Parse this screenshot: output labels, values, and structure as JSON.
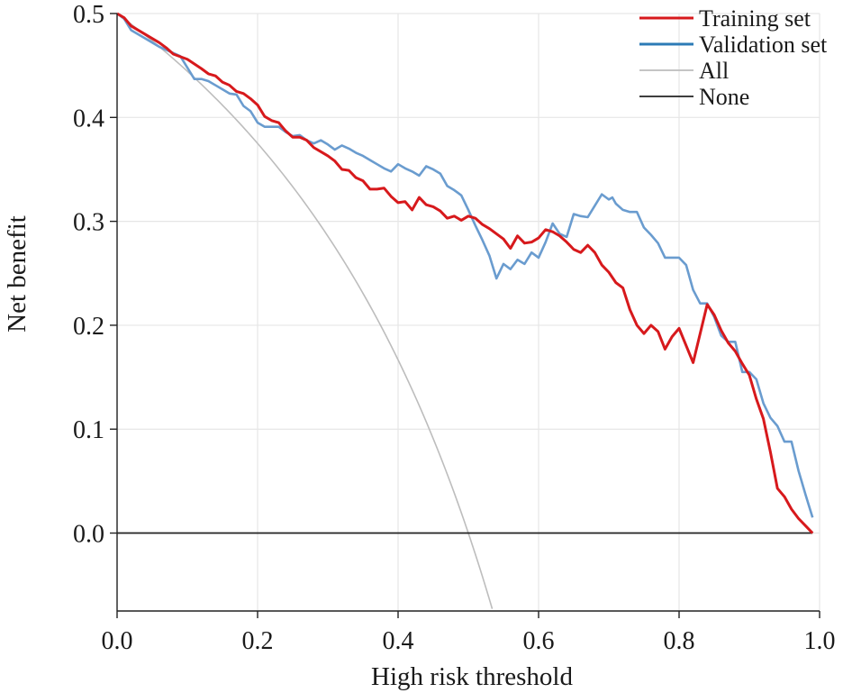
{
  "chart_data": {
    "type": "line",
    "xlabel": "High risk threshold",
    "ylabel": "Net benefit",
    "xlim": [
      0,
      1
    ],
    "ylim": [
      -0.075,
      0.5
    ],
    "xticks": [
      "0.0",
      "0.2",
      "0.4",
      "0.6",
      "0.8",
      "1.0"
    ],
    "yticks": [
      "0.0",
      "0.1",
      "0.2",
      "0.3",
      "0.4",
      "0.5"
    ],
    "grid": true,
    "legend_position": "top-right",
    "series": [
      {
        "name": "Training set",
        "color": "#d7191c",
        "x": [
          0.0,
          0.01,
          0.02,
          0.04,
          0.06,
          0.07,
          0.08,
          0.1,
          0.12,
          0.13,
          0.14,
          0.15,
          0.16,
          0.17,
          0.18,
          0.19,
          0.2,
          0.21,
          0.22,
          0.23,
          0.24,
          0.25,
          0.26,
          0.27,
          0.28,
          0.29,
          0.3,
          0.31,
          0.32,
          0.33,
          0.34,
          0.35,
          0.36,
          0.37,
          0.38,
          0.39,
          0.4,
          0.41,
          0.42,
          0.43,
          0.44,
          0.45,
          0.46,
          0.47,
          0.48,
          0.49,
          0.5,
          0.51,
          0.52,
          0.53,
          0.54,
          0.55,
          0.56,
          0.57,
          0.58,
          0.59,
          0.6,
          0.61,
          0.62,
          0.63,
          0.64,
          0.65,
          0.66,
          0.67,
          0.68,
          0.69,
          0.7,
          0.71,
          0.72,
          0.73,
          0.74,
          0.75,
          0.76,
          0.77,
          0.78,
          0.79,
          0.8,
          0.82,
          0.84,
          0.85,
          0.86,
          0.87,
          0.88,
          0.89,
          0.9,
          0.91,
          0.92,
          0.93,
          0.94,
          0.95,
          0.96,
          0.97,
          0.98,
          0.99
        ],
        "values": [
          0.5,
          0.496,
          0.488,
          0.48,
          0.472,
          0.467,
          0.461,
          0.456,
          0.447,
          0.442,
          0.44,
          0.434,
          0.431,
          0.425,
          0.423,
          0.418,
          0.412,
          0.401,
          0.397,
          0.395,
          0.387,
          0.381,
          0.381,
          0.378,
          0.371,
          0.367,
          0.363,
          0.358,
          0.35,
          0.349,
          0.342,
          0.339,
          0.331,
          0.331,
          0.332,
          0.324,
          0.318,
          0.319,
          0.311,
          0.323,
          0.316,
          0.314,
          0.31,
          0.303,
          0.305,
          0.301,
          0.305,
          0.303,
          0.297,
          0.293,
          0.288,
          0.283,
          0.274,
          0.286,
          0.279,
          0.28,
          0.284,
          0.292,
          0.29,
          0.286,
          0.28,
          0.273,
          0.27,
          0.277,
          0.27,
          0.258,
          0.251,
          0.241,
          0.236,
          0.215,
          0.2,
          0.192,
          0.2,
          0.194,
          0.177,
          0.189,
          0.197,
          0.164,
          0.22,
          0.21,
          0.195,
          0.183,
          0.175,
          0.163,
          0.152,
          0.129,
          0.11,
          0.078,
          0.043,
          0.035,
          0.023,
          0.014,
          0.007,
          0.0
        ]
      },
      {
        "name": "Validation set",
        "color": "#6a9ccf",
        "x": [
          0.0,
          0.01,
          0.02,
          0.04,
          0.06,
          0.08,
          0.09,
          0.11,
          0.12,
          0.13,
          0.14,
          0.15,
          0.16,
          0.17,
          0.18,
          0.19,
          0.2,
          0.21,
          0.22,
          0.23,
          0.24,
          0.25,
          0.26,
          0.27,
          0.28,
          0.29,
          0.3,
          0.31,
          0.32,
          0.33,
          0.34,
          0.35,
          0.36,
          0.37,
          0.38,
          0.39,
          0.4,
          0.41,
          0.42,
          0.43,
          0.44,
          0.45,
          0.46,
          0.47,
          0.48,
          0.49,
          0.5,
          0.51,
          0.52,
          0.53,
          0.54,
          0.55,
          0.56,
          0.57,
          0.58,
          0.59,
          0.6,
          0.61,
          0.62,
          0.63,
          0.64,
          0.65,
          0.66,
          0.67,
          0.68,
          0.69,
          0.7,
          0.705,
          0.71,
          0.72,
          0.73,
          0.74,
          0.75,
          0.76,
          0.77,
          0.78,
          0.79,
          0.8,
          0.81,
          0.82,
          0.83,
          0.84,
          0.85,
          0.86,
          0.87,
          0.88,
          0.89,
          0.9,
          0.91,
          0.92,
          0.93,
          0.94,
          0.95,
          0.96,
          0.97,
          0.98,
          0.99
        ],
        "values": [
          0.5,
          0.495,
          0.484,
          0.476,
          0.468,
          0.462,
          0.459,
          0.437,
          0.437,
          0.435,
          0.431,
          0.427,
          0.423,
          0.422,
          0.411,
          0.406,
          0.395,
          0.391,
          0.391,
          0.391,
          0.386,
          0.382,
          0.383,
          0.378,
          0.375,
          0.378,
          0.374,
          0.369,
          0.373,
          0.37,
          0.366,
          0.363,
          0.359,
          0.355,
          0.351,
          0.348,
          0.355,
          0.351,
          0.348,
          0.344,
          0.353,
          0.35,
          0.346,
          0.334,
          0.33,
          0.325,
          0.311,
          0.296,
          0.282,
          0.267,
          0.245,
          0.259,
          0.254,
          0.263,
          0.259,
          0.27,
          0.265,
          0.28,
          0.298,
          0.288,
          0.285,
          0.307,
          0.305,
          0.304,
          0.315,
          0.326,
          0.321,
          0.323,
          0.317,
          0.311,
          0.309,
          0.309,
          0.294,
          0.287,
          0.279,
          0.265,
          0.265,
          0.265,
          0.258,
          0.234,
          0.221,
          0.221,
          0.208,
          0.19,
          0.184,
          0.184,
          0.155,
          0.155,
          0.148,
          0.125,
          0.111,
          0.103,
          0.088,
          0.088,
          0.06,
          0.037,
          0.015
        ]
      },
      {
        "name": "All",
        "color": "#bdbdbd",
        "curve": "net_benefit_all",
        "prevalence": 0.5,
        "x_range": [
          0.0,
          0.534
        ]
      },
      {
        "name": "None",
        "color": "#222222",
        "x": [
          0.0,
          0.99
        ],
        "values": [
          0.0,
          0.0
        ]
      }
    ]
  }
}
